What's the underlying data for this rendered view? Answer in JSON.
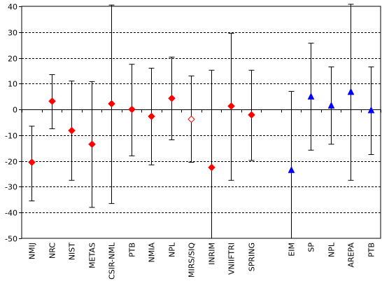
{
  "chart_data": {
    "type": "scatter",
    "title": "",
    "xlabel": "",
    "ylabel": "",
    "ylim": [
      -50,
      40
    ],
    "y_ticks": [
      -50,
      -40,
      -30,
      -20,
      -10,
      0,
      10,
      20,
      30,
      40
    ],
    "grid": "horizontal dashed",
    "colors": {
      "red_marker": "#ff0000",
      "blue_marker": "#0000ff",
      "open_marker_stroke": "#ff0000",
      "axis": "#000000",
      "grid": "#000000"
    },
    "points": [
      {
        "label": "NMIJ",
        "y": -20.5,
        "err_low": -35.5,
        "err_high": -6.5,
        "marker": "diamond-red"
      },
      {
        "label": "NRC",
        "y": 3.2,
        "err_low": -7.5,
        "err_high": 13.5,
        "marker": "diamond-red"
      },
      {
        "label": "NIST",
        "y": -8.2,
        "err_low": -27.5,
        "err_high": 11.0,
        "marker": "diamond-red"
      },
      {
        "label": "METAS",
        "y": -13.5,
        "err_low": -38.0,
        "err_high": 10.8,
        "marker": "diamond-red"
      },
      {
        "label": "CSIR-NML",
        "y": 2.2,
        "err_low": -36.5,
        "err_high": 40.5,
        "marker": "diamond-red"
      },
      {
        "label": "PTB",
        "y": 0.0,
        "err_low": -18.0,
        "err_high": 17.5,
        "marker": "diamond-red"
      },
      {
        "label": "NMIA",
        "y": -2.7,
        "err_low": -21.5,
        "err_high": 16.0,
        "marker": "diamond-red"
      },
      {
        "label": "NPL",
        "y": 4.3,
        "err_low": -11.8,
        "err_high": 20.3,
        "marker": "diamond-red"
      },
      {
        "label": "MIRS/SIQ",
        "y": -3.8,
        "err_low": -20.5,
        "err_high": 13.0,
        "marker": "diamond-open"
      },
      {
        "label": "INRIM",
        "y": -22.5,
        "err_low": -50.0,
        "err_high": 15.2,
        "marker": "diamond-red"
      },
      {
        "label": "VNIIFTRI",
        "y": 1.3,
        "err_low": -27.5,
        "err_high": 29.5,
        "marker": "diamond-red"
      },
      {
        "label": "SPRING",
        "y": -2.1,
        "err_low": -19.8,
        "err_high": 15.2,
        "marker": "diamond-red"
      },
      {
        "label": "",
        "y": null,
        "err_low": null,
        "err_high": null,
        "marker": "none"
      },
      {
        "label": "EIM",
        "y": -23.5,
        "err_low": -50.0,
        "err_high": 7.0,
        "marker": "triangle-blue"
      },
      {
        "label": "SP",
        "y": 5.0,
        "err_low": -15.8,
        "err_high": 25.7,
        "marker": "triangle-blue"
      },
      {
        "label": "NPL",
        "y": 1.5,
        "err_low": -13.5,
        "err_high": 16.5,
        "marker": "triangle-blue"
      },
      {
        "label": "AREPA",
        "y": 6.8,
        "err_low": -27.5,
        "err_high": 40.8,
        "marker": "triangle-blue"
      },
      {
        "label": "PTB",
        "y": -0.3,
        "err_low": -17.5,
        "err_high": 16.5,
        "marker": "triangle-blue"
      }
    ]
  }
}
